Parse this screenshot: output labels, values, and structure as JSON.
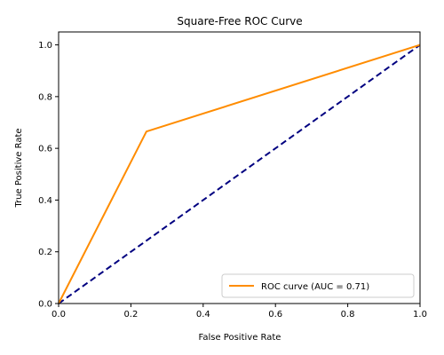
{
  "chart_data": {
    "type": "line",
    "title": "Square-Free ROC Curve",
    "xlabel": "False Positive Rate",
    "ylabel": "True Positive Rate",
    "xlim": [
      0.0,
      1.0
    ],
    "ylim": [
      0.0,
      1.05
    ],
    "xticks": [
      "0.0",
      "0.2",
      "0.4",
      "0.6",
      "0.8",
      "1.0"
    ],
    "yticks": [
      "0.0",
      "0.2",
      "0.4",
      "0.6",
      "0.8",
      "1.0"
    ],
    "grid": false,
    "legend_position": "lower-right",
    "series": [
      {
        "name": "ROC curve (AUC = 0.71)",
        "x": [
          0.0,
          0.243,
          1.0
        ],
        "y": [
          0.0,
          0.665,
          1.0
        ],
        "color": "#ff8c00",
        "style": "solid"
      },
      {
        "x": [
          0.0,
          1.0
        ],
        "y": [
          0.0,
          1.0
        ],
        "color": "#000080",
        "style": "dashed"
      }
    ]
  }
}
